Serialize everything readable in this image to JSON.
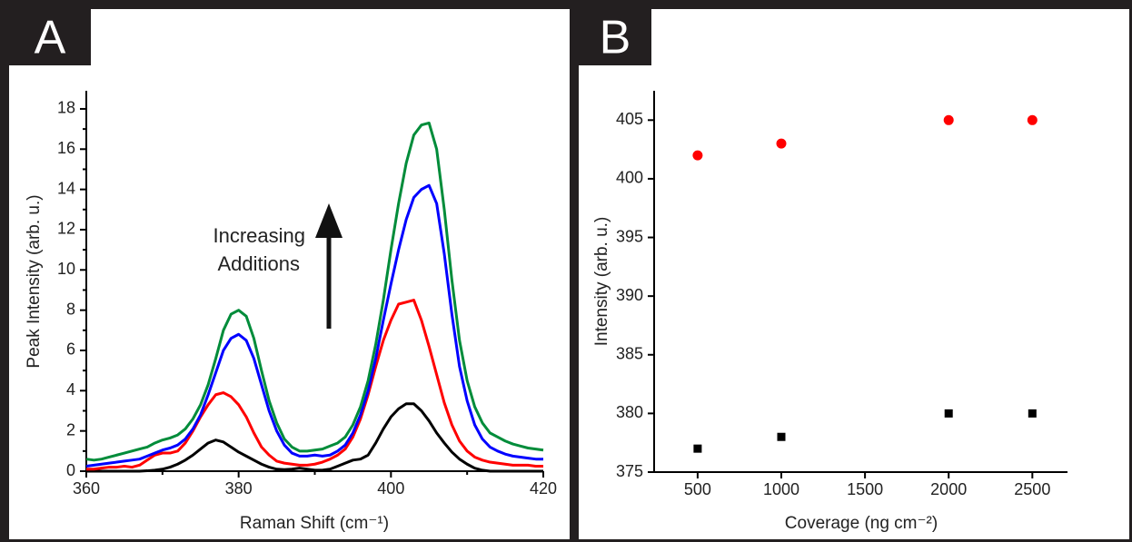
{
  "chart_data": [
    {
      "type": "line",
      "label": "A",
      "xlabel": "Raman Shift (cm⁻¹)",
      "ylabel": "Peak Intensity (arb. u.)",
      "annotation": [
        "Increasing",
        "Additions"
      ],
      "xlim": [
        360,
        420
      ],
      "xticks": [
        360,
        380,
        400,
        420
      ],
      "xminorticks": [
        370,
        390,
        410
      ],
      "ylim": [
        0,
        18.9
      ],
      "yticks": [
        0,
        2,
        4,
        6,
        8,
        10,
        12,
        14,
        16,
        18
      ],
      "yminorticks": [
        1,
        3,
        5,
        7,
        9,
        11,
        13,
        15,
        17
      ],
      "x": [
        360,
        361,
        362,
        363,
        364,
        365,
        366,
        367,
        368,
        369,
        370,
        371,
        372,
        373,
        374,
        375,
        376,
        377,
        378,
        379,
        380,
        381,
        382,
        383,
        384,
        385,
        386,
        387,
        388,
        389,
        390,
        391,
        392,
        393,
        394,
        395,
        396,
        397,
        398,
        399,
        400,
        401,
        402,
        403,
        404,
        405,
        406,
        407,
        408,
        409,
        410,
        411,
        412,
        413,
        414,
        415,
        416,
        417,
        418,
        419,
        420
      ],
      "series": [
        {
          "color": "#000000",
          "values": [
            0,
            0,
            0,
            0,
            0,
            0,
            0,
            0,
            0.02,
            0.05,
            0.1,
            0.2,
            0.35,
            0.55,
            0.8,
            1.1,
            1.4,
            1.55,
            1.45,
            1.2,
            0.95,
            0.75,
            0.55,
            0.35,
            0.2,
            0.1,
            0.08,
            0.1,
            0.15,
            0.1,
            0.05,
            0.05,
            0.1,
            0.25,
            0.4,
            0.55,
            0.6,
            0.8,
            1.4,
            2.1,
            2.7,
            3.1,
            3.35,
            3.35,
            3.0,
            2.5,
            1.9,
            1.4,
            0.95,
            0.6,
            0.35,
            0.15,
            0.05,
            0,
            0,
            0,
            0,
            0,
            0,
            0,
            0
          ]
        },
        {
          "color": "#ff0000",
          "values": [
            0.1,
            0.1,
            0.15,
            0.2,
            0.2,
            0.25,
            0.2,
            0.3,
            0.55,
            0.8,
            0.9,
            0.9,
            1.0,
            1.4,
            2.0,
            2.7,
            3.3,
            3.8,
            3.9,
            3.7,
            3.3,
            2.7,
            1.9,
            1.2,
            0.8,
            0.5,
            0.4,
            0.35,
            0.3,
            0.3,
            0.35,
            0.45,
            0.6,
            0.8,
            1.1,
            1.7,
            2.6,
            3.8,
            5.2,
            6.5,
            7.5,
            8.3,
            8.4,
            8.5,
            7.5,
            6.2,
            4.8,
            3.4,
            2.3,
            1.5,
            1.0,
            0.7,
            0.55,
            0.45,
            0.4,
            0.35,
            0.3,
            0.3,
            0.3,
            0.25,
            0.25
          ]
        },
        {
          "color": "#0000ff",
          "values": [
            0.25,
            0.3,
            0.35,
            0.4,
            0.45,
            0.5,
            0.55,
            0.6,
            0.75,
            0.9,
            1.05,
            1.15,
            1.3,
            1.6,
            2.1,
            2.8,
            3.8,
            4.9,
            6.0,
            6.6,
            6.8,
            6.5,
            5.6,
            4.3,
            3.0,
            2.0,
            1.3,
            0.9,
            0.75,
            0.75,
            0.8,
            0.75,
            0.8,
            1.0,
            1.3,
            1.9,
            2.8,
            4.0,
            5.6,
            7.5,
            9.3,
            11.0,
            12.5,
            13.6,
            14.0,
            14.2,
            13.3,
            10.8,
            7.8,
            5.2,
            3.5,
            2.3,
            1.6,
            1.2,
            1.0,
            0.85,
            0.75,
            0.7,
            0.65,
            0.6,
            0.6
          ]
        },
        {
          "color": "#008c3a",
          "values": [
            0.6,
            0.55,
            0.6,
            0.7,
            0.8,
            0.9,
            1.0,
            1.1,
            1.2,
            1.4,
            1.55,
            1.65,
            1.8,
            2.1,
            2.6,
            3.3,
            4.3,
            5.6,
            7.0,
            7.8,
            8.0,
            7.7,
            6.6,
            5.0,
            3.5,
            2.4,
            1.6,
            1.2,
            1.0,
            1.0,
            1.05,
            1.1,
            1.25,
            1.4,
            1.7,
            2.3,
            3.2,
            4.5,
            6.3,
            8.5,
            11.0,
            13.3,
            15.3,
            16.7,
            17.2,
            17.3,
            16.0,
            13.0,
            9.5,
            6.5,
            4.5,
            3.2,
            2.4,
            1.9,
            1.7,
            1.5,
            1.35,
            1.25,
            1.15,
            1.1,
            1.05
          ]
        }
      ]
    },
    {
      "type": "scatter",
      "label": "B",
      "xlabel": "Coverage (ng cm⁻²)",
      "ylabel": "Intensity (arb. u.)",
      "xlim": [
        240,
        2710
      ],
      "xticks": [
        500,
        1000,
        1500,
        2000,
        2500
      ],
      "ylim": [
        375,
        407.5
      ],
      "yticks": [
        375,
        380,
        385,
        390,
        395,
        400,
        405
      ],
      "series": [
        {
          "color": "#ff0000",
          "marker": "circle",
          "x": [
            500,
            1000,
            2000,
            2500
          ],
          "values": [
            402,
            403,
            405,
            405
          ]
        },
        {
          "color": "#000000",
          "marker": "square",
          "x": [
            500,
            1000,
            2000,
            2500
          ],
          "values": [
            377,
            378,
            380,
            380
          ]
        }
      ]
    }
  ]
}
